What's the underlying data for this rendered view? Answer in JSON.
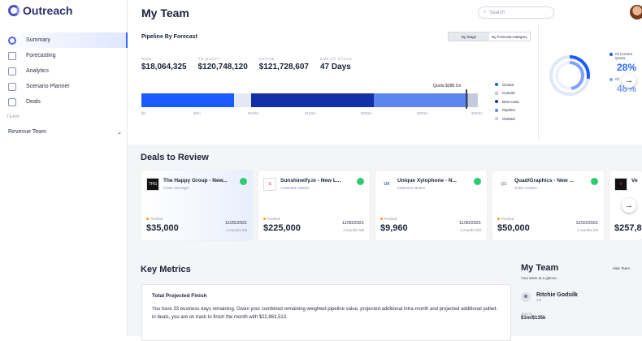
{
  "app": {
    "logo": "Outreach"
  },
  "sidebar": {
    "items": [
      {
        "label": "Summary"
      },
      {
        "label": "Forecasting"
      },
      {
        "label": "Analytics"
      },
      {
        "label": "Scenario Planner"
      },
      {
        "label": "Deals"
      }
    ],
    "team_label": "TEAM",
    "team_value": "Revenue Team"
  },
  "header": {
    "title": "My Team",
    "search_placeholder": "Search"
  },
  "pipeline": {
    "title": "Pipeline By Forecast",
    "toggle": [
      "By Stage",
      "By Forecast Category"
    ],
    "kpis": [
      {
        "label": "WON",
        "value": "$18,064,325"
      },
      {
        "label": "TO QUOTA",
        "value": "$120,748,120"
      },
      {
        "label": "ACTIVE",
        "value": "$121,728,607"
      },
      {
        "label": "END OF CYCLE",
        "value": "47 Days"
      }
    ],
    "quota_label": "Quota $288.1m",
    "axis": [
      "$0",
      "$5m",
      "$100m",
      "$150m",
      "$200m",
      "$250m",
      "$300m"
    ],
    "legend": [
      {
        "label": "Closed",
        "color": "#1b5cff"
      },
      {
        "label": "Commit",
        "color": "#e3e8f5"
      },
      {
        "label": "Best Case",
        "color": "#1230a8"
      },
      {
        "label": "Pipeline",
        "color": "#5b86f0"
      },
      {
        "label": "Omitted",
        "color": "#c5cadb"
      }
    ]
  },
  "attainment": {
    "legend": [
      {
        "label": "Of Current Quota",
        "value": "28%",
        "color": "#1b5cff"
      },
      {
        "label": "Of",
        "value": "48%",
        "color": "#7fa1ff"
      }
    ]
  },
  "deals_section": {
    "title": "Deals to Review",
    "deals": [
      {
        "logo": "THG",
        "name": "The Happy Group - New...",
        "owner": "Frank Herringer",
        "status": "Pushed",
        "amount": "$35,000",
        "date": "11/25/2021",
        "months": "2 months left"
      },
      {
        "logo": "S",
        "name": "Sunshineify.io - New L...",
        "owner": "Antoinette Dalisto",
        "status": "Pushed",
        "amount": "$225,000",
        "date": "11/30/2021",
        "months": "2 months left"
      },
      {
        "logo": "UX",
        "name": "Unique Xylophone - N...",
        "owner": "Katherine Meters",
        "status": "Pushed",
        "amount": "$9,960",
        "date": "11/30/2021",
        "months": "2 months left"
      },
      {
        "logo": "QG",
        "name": "Quad/Graphics - New ...",
        "owner": "Robin Callisto",
        "status": "Pushed",
        "amount": "$50,000",
        "date": "12/10/2021",
        "months": "2 months left"
      },
      {
        "logo": "V",
        "name": "Ve",
        "owner": "",
        "status": "",
        "amount": "$257,8",
        "date": "",
        "months": ""
      }
    ]
  },
  "metrics": {
    "title": "Key Metrics",
    "card_title": "Total Projected Finish",
    "card_text": "You have 33 business days remaining. Given your combined remaining weighted pipeline value, projected additional intra-month and projected additional pulled-in deals, you are on track to finish the month with $22,863,513."
  },
  "team_panel": {
    "title": "My Team",
    "hide": "Hide Team",
    "subtitle": "Your team at a glance.",
    "rep_initial": "R",
    "rep_name": "Ritchie Godsilk",
    "rep_role": "1st",
    "quota_label": "QUOTA",
    "quota_value": "$1m/$135k"
  },
  "nav_arrow": "→"
}
